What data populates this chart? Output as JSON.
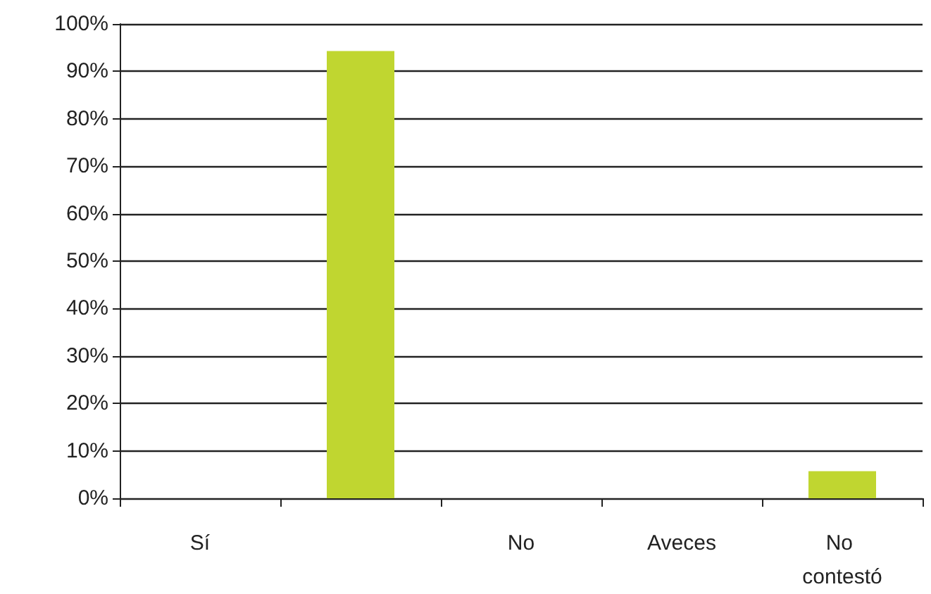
{
  "chart_data": {
    "type": "bar",
    "categories": [
      "Sí",
      null,
      "No",
      "Aveces",
      "No contestó"
    ],
    "values": [
      0,
      94.3,
      0,
      0,
      5.7
    ],
    "color": "#c0d630",
    "ylim": [
      0,
      100
    ],
    "yticks": [
      {
        "value": 0,
        "label": "0%"
      },
      {
        "value": 10,
        "label": "10%"
      },
      {
        "value": 20,
        "label": "20%"
      },
      {
        "value": 30,
        "label": "30%"
      },
      {
        "value": 40,
        "label": "40%"
      },
      {
        "value": 50,
        "label": "50%"
      },
      {
        "value": 60,
        "label": "60%"
      },
      {
        "value": 70,
        "label": "70%"
      },
      {
        "value": 80,
        "label": "80%"
      },
      {
        "value": 90,
        "label": "90%"
      },
      {
        "value": 100,
        "label": "100%"
      }
    ],
    "grid": true
  }
}
